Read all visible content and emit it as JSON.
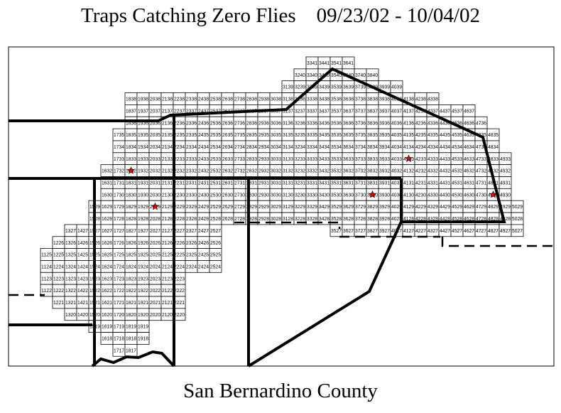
{
  "title": "Traps Catching Zero Flies    09/23/02 - 10/04/02",
  "subtitle": "San Bernardino County",
  "colors": {
    "trap_marker": "#e00000",
    "grid": "#000000",
    "boundary": "#000000"
  },
  "marker_icon": "red-star",
  "grid_rows": [
    {
      "row": 41,
      "segments": [
        [
          33,
          36
        ]
      ]
    },
    {
      "row": 40,
      "segments": [
        [
          32,
          38
        ]
      ]
    },
    {
      "row": 39,
      "segments": [
        [
          31,
          40
        ]
      ]
    },
    {
      "row": 38,
      "segments": [
        [
          18,
          43
        ]
      ]
    },
    {
      "row": 37,
      "segments": [
        [
          18,
          46
        ]
      ]
    },
    {
      "row": 36,
      "segments": [
        [
          18,
          47
        ]
      ]
    },
    {
      "row": 35,
      "segments": [
        [
          17,
          48
        ]
      ]
    },
    {
      "row": 34,
      "segments": [
        [
          17,
          48
        ]
      ]
    },
    {
      "row": 33,
      "segments": [
        [
          17,
          49
        ]
      ]
    },
    {
      "row": 32,
      "segments": [
        [
          16,
          49
        ]
      ]
    },
    {
      "row": 31,
      "segments": [
        [
          16,
          49
        ]
      ]
    },
    {
      "row": 30,
      "segments": [
        [
          16,
          49
        ]
      ]
    },
    {
      "row": 29,
      "segments": [
        [
          15,
          50
        ]
      ]
    },
    {
      "row": 28,
      "segments": [
        [
          15,
          50
        ]
      ]
    },
    {
      "row": 27,
      "segments": [
        [
          13,
          25
        ],
        [
          35,
          50
        ]
      ]
    },
    {
      "row": 26,
      "segments": [
        [
          12,
          25
        ]
      ]
    },
    {
      "row": 25,
      "segments": [
        [
          11,
          25
        ]
      ]
    },
    {
      "row": 24,
      "segments": [
        [
          11,
          25
        ]
      ]
    },
    {
      "row": 23,
      "segments": [
        [
          11,
          22
        ]
      ]
    },
    {
      "row": 22,
      "segments": [
        [
          11,
          22
        ]
      ]
    },
    {
      "row": 21,
      "segments": [
        [
          12,
          22
        ]
      ]
    },
    {
      "row": 20,
      "segments": [
        [
          13,
          22
        ]
      ]
    },
    {
      "row": 19,
      "segments": [
        [
          15,
          19
        ]
      ]
    },
    {
      "row": 18,
      "segments": [
        [
          16,
          19
        ]
      ]
    },
    {
      "row": 17,
      "segments": [
        [
          17,
          18
        ]
      ]
    }
  ],
  "trap_markers": [
    "1832",
    "2029",
    "4133",
    "3830",
    "4830"
  ]
}
